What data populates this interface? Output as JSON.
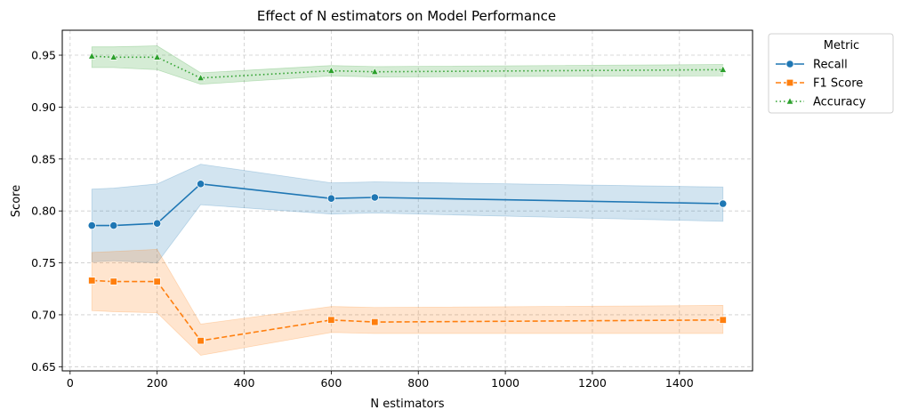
{
  "chart_data": {
    "type": "line",
    "title": "Effect of N estimators on Model Performance",
    "xlabel": "N estimators",
    "ylabel": "Score",
    "xlim": [
      -18,
      1568
    ],
    "ylim": [
      0.646,
      0.974
    ],
    "xticks": [
      0,
      200,
      400,
      600,
      800,
      1000,
      1200,
      1400
    ],
    "yticks": [
      0.65,
      0.7,
      0.75,
      0.8,
      0.85,
      0.9,
      0.95
    ],
    "ytick_labels": [
      "0.65",
      "0.70",
      "0.75",
      "0.80",
      "0.85",
      "0.90",
      "0.95"
    ],
    "grid": true,
    "legend": {
      "title": "Metric",
      "position": "outside-top-right"
    },
    "x": [
      50,
      100,
      200,
      300,
      600,
      700,
      1500
    ],
    "series": [
      {
        "name": "Recall",
        "color": "#1f77b4",
        "linestyle": "solid",
        "marker": "circle",
        "values": [
          0.786,
          0.786,
          0.788,
          0.826,
          0.812,
          0.813,
          0.807
        ],
        "ci_lower": [
          0.751,
          0.752,
          0.75,
          0.806,
          0.797,
          0.798,
          0.79
        ],
        "ci_upper": [
          0.821,
          0.822,
          0.826,
          0.845,
          0.827,
          0.828,
          0.823
        ]
      },
      {
        "name": "F1 Score",
        "color": "#ff7f0e",
        "linestyle": "dashed",
        "marker": "square",
        "values": [
          0.733,
          0.732,
          0.732,
          0.675,
          0.695,
          0.693,
          0.695
        ],
        "ci_lower": [
          0.704,
          0.703,
          0.702,
          0.661,
          0.683,
          0.682,
          0.682
        ],
        "ci_upper": [
          0.76,
          0.761,
          0.763,
          0.691,
          0.708,
          0.707,
          0.709
        ]
      },
      {
        "name": "Accuracy",
        "color": "#2ca02c",
        "linestyle": "dotted",
        "marker": "triangle",
        "values": [
          0.949,
          0.948,
          0.948,
          0.928,
          0.935,
          0.934,
          0.936
        ],
        "ci_lower": [
          0.938,
          0.938,
          0.936,
          0.922,
          0.93,
          0.929,
          0.93
        ],
        "ci_upper": [
          0.958,
          0.958,
          0.959,
          0.933,
          0.94,
          0.939,
          0.941
        ]
      }
    ]
  }
}
